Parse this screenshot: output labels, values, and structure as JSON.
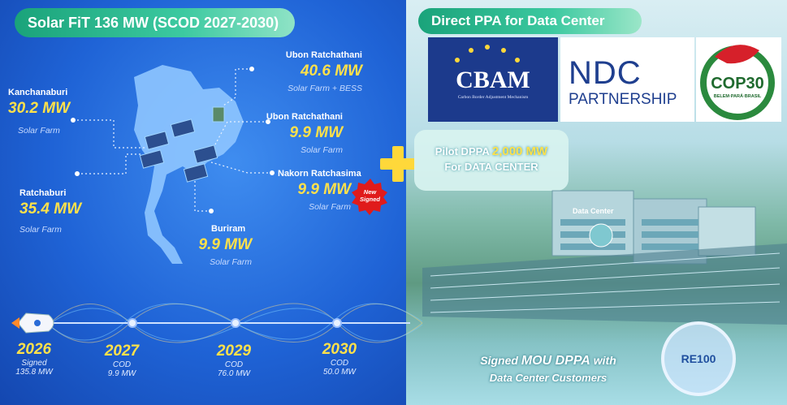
{
  "left_panel": {
    "title": "Solar FiT 136 MW (SCOD 2027-2030)",
    "sites": [
      {
        "name": "Ubon Ratchathani",
        "capacity": "40.6 MW",
        "type": "Solar Farm + BESS"
      },
      {
        "name": "Kanchanaburi",
        "capacity": "30.2 MW",
        "type": "Solar Farm"
      },
      {
        "name": "Ubon Ratchathani",
        "capacity": "9.9 MW",
        "type": "Solar Farm"
      },
      {
        "name": "Nakorn Ratchasima",
        "capacity": "9.9 MW",
        "type": "Solar Farm"
      },
      {
        "name": "Ratchaburi",
        "capacity": "35.4 MW",
        "type": "Solar Farm"
      },
      {
        "name": "Buriram",
        "capacity": "9.9 MW",
        "type": "Solar Farm"
      }
    ],
    "badge": [
      "New",
      "Signed"
    ],
    "timeline": [
      {
        "year": "2026",
        "status": "Signed",
        "capacity": "135.8 MW"
      },
      {
        "year": "2027",
        "status": "COD",
        "capacity": "9.9 MW"
      },
      {
        "year": "2029",
        "status": "COD",
        "capacity": "76.0 MW"
      },
      {
        "year": "2030",
        "status": "COD",
        "capacity": "50.0 MW"
      }
    ]
  },
  "right_panel": {
    "title": "Direct PPA for Data Center",
    "logos": {
      "cbam": "CBAM",
      "cbam_caption": "Carbon Border Adjustment Mechanism",
      "ndc": "NDC",
      "ndc_sub": "PARTNERSHIP",
      "cop": "COP30",
      "cop_sub": "BELEM·PARÁ·BRASIL"
    },
    "pilot": {
      "label": "Pilot DPPA",
      "capacity": "2,000 MW",
      "sub": "For DATA CENTER"
    },
    "building_sign": "Data Center",
    "mou": {
      "prefix": "Signed",
      "emphasis": "MOU DPPA",
      "suffix": "with",
      "line2": "Data Center Customers"
    },
    "badge": "RE100"
  }
}
